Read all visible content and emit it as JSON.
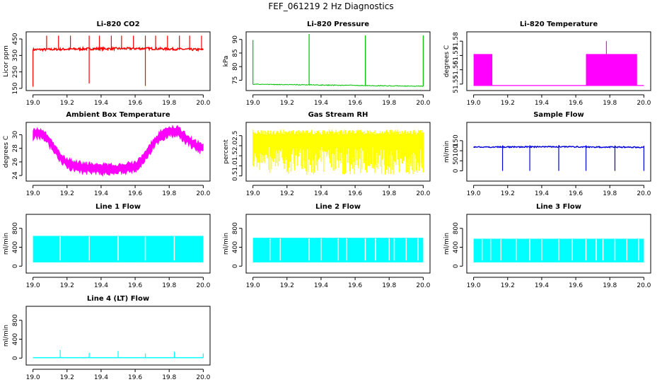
{
  "figure": {
    "title": "FEF_061219  2 Hz Diagnostics"
  },
  "chart_data": [
    {
      "id": "co2",
      "type": "line",
      "title": "Li-820 CO2",
      "ylabel": "Licor ppm",
      "color": "#ff0000",
      "xlim": [
        19.0,
        20.0
      ],
      "ylim": [
        150,
        480
      ],
      "xticks": [
        "19.0",
        "19.2",
        "19.4",
        "19.6",
        "19.8",
        "20.0"
      ],
      "yticks": [
        "150",
        "250",
        "350",
        "450"
      ],
      "shape": "co2",
      "series": [
        {
          "values": [
            [
              19.0,
              385
            ],
            [
              19.33,
              390
            ],
            [
              19.66,
              392
            ],
            [
              20.0,
              385
            ]
          ]
        }
      ],
      "spikes_up": [
        19.08,
        19.15,
        19.22,
        19.33,
        19.39,
        19.46,
        19.52,
        19.59,
        19.66,
        19.72,
        19.79,
        19.86,
        19.92,
        19.99
      ],
      "spikes_down": [
        [
          19.0,
          160
        ],
        [
          19.33,
          180
        ],
        [
          19.66,
          165
        ]
      ]
    },
    {
      "id": "pressure",
      "type": "line",
      "title": "Li-820 Pressure",
      "ylabel": "kPa",
      "color": "#00c000",
      "xlim": [
        19.0,
        20.0
      ],
      "ylim": [
        72,
        92
      ],
      "xticks": [
        "19.0",
        "19.2",
        "19.4",
        "19.6",
        "19.8",
        "20.0"
      ],
      "yticks": [
        "75",
        "80",
        "85",
        "90"
      ],
      "shape": "pressure",
      "series": [
        {
          "values": [
            [
              19.0,
              73.5
            ],
            [
              20.0,
              72.8
            ]
          ]
        }
      ],
      "spikes_up": [
        [
          19.0,
          89.8
        ],
        [
          19.33,
          92
        ],
        [
          19.66,
          91.5
        ],
        [
          20.0,
          91.5
        ]
      ]
    },
    {
      "id": "temp",
      "type": "line",
      "title": "Li-820 Temperature",
      "ylabel": "degrees C",
      "color": "#ff00ff",
      "xlim": [
        19.0,
        20.0
      ],
      "ylim": [
        51.547,
        51.585
      ],
      "xticks": [
        "19.0",
        "19.2",
        "19.4",
        "19.6",
        "19.8",
        "20.0"
      ],
      "yticks": [
        "51.55",
        "51.56",
        "51.57",
        "51.58"
      ],
      "shape": "temp",
      "levels": [
        51.549,
        51.571
      ],
      "high_segments": [
        [
          19.0,
          19.11
        ],
        [
          19.66,
          19.96
        ]
      ],
      "spike": [
        19.78,
        51.58
      ]
    },
    {
      "id": "ambient",
      "type": "line",
      "title": "Ambient Box Temperature",
      "ylabel": "degrees C",
      "color": "#ff00ff",
      "xlim": [
        19.0,
        20.0
      ],
      "ylim": [
        23.5,
        31.5
      ],
      "xticks": [
        "19.0",
        "19.2",
        "19.4",
        "19.6",
        "19.8",
        "20.0"
      ],
      "yticks": [
        "24",
        "26",
        "28",
        "30"
      ],
      "shape": "ambient",
      "series": [
        {
          "values": [
            [
              19.0,
              30.2
            ],
            [
              19.05,
              30.3
            ],
            [
              19.1,
              29.0
            ],
            [
              19.15,
              27.0
            ],
            [
              19.2,
              25.8
            ],
            [
              19.3,
              25.2
            ],
            [
              19.4,
              25.0
            ],
            [
              19.5,
              25.0
            ],
            [
              19.6,
              25.3
            ],
            [
              19.65,
              26.5
            ],
            [
              19.7,
              28.5
            ],
            [
              19.75,
              30.0
            ],
            [
              19.8,
              30.6
            ],
            [
              19.85,
              30.5
            ],
            [
              19.9,
              29.5
            ],
            [
              19.95,
              28.5
            ],
            [
              20.0,
              28.0
            ]
          ]
        }
      ]
    },
    {
      "id": "rh",
      "type": "line",
      "title": "Gas Stream RH",
      "ylabel": "percent",
      "color": "#ffff00",
      "xlim": [
        19.0,
        20.0
      ],
      "ylim": [
        0.35,
        3.05
      ],
      "xticks": [
        "19.0",
        "19.2",
        "19.4",
        "19.6",
        "19.8",
        "20.0"
      ],
      "yticks": [
        "0.5",
        "1.0",
        "1.5",
        "2.0",
        "2.5"
      ],
      "shape": "rh",
      "band": [
        0.55,
        2.8
      ]
    },
    {
      "id": "sample",
      "type": "line",
      "title": "Sample Flow",
      "ylabel": "ml/min",
      "color": "#0000dd",
      "xlim": [
        19.0,
        20.0
      ],
      "ylim": [
        -40,
        230
      ],
      "xticks": [
        "19.0",
        "19.2",
        "19.4",
        "19.6",
        "19.8",
        "20.0"
      ],
      "yticks": [
        "0",
        "50",
        "100",
        "150"
      ],
      "shape": "sample",
      "series": [
        {
          "values": [
            [
              19.0,
              118
            ],
            [
              19.5,
              120
            ],
            [
              20.0,
              117
            ]
          ]
        }
      ],
      "dips": [
        19.17,
        19.33,
        19.5,
        19.66,
        19.83,
        20.0
      ]
    },
    {
      "id": "line1",
      "type": "line",
      "title": "Line 1 Flow",
      "ylabel": "ml/min",
      "color": "#00ffff",
      "xlim": [
        19.0,
        20.0
      ],
      "ylim": [
        -100,
        1050
      ],
      "xticks": [
        "19.0",
        "19.2",
        "19.4",
        "19.6",
        "19.8",
        "20.0"
      ],
      "yticks": [
        "0",
        "400",
        "800"
      ],
      "shape": "linef",
      "band": [
        80,
        640
      ],
      "gaps": [
        19.16,
        19.33,
        19.5,
        19.66,
        19.83
      ]
    },
    {
      "id": "line2",
      "type": "line",
      "title": "Line 2 Flow",
      "ylabel": "ml/min",
      "color": "#00ffff",
      "xlim": [
        19.0,
        20.0
      ],
      "ylim": [
        -100,
        1050
      ],
      "xticks": [
        "19.0",
        "19.2",
        "19.4",
        "19.6",
        "19.8",
        "20.0"
      ],
      "yticks": [
        "0",
        "400",
        "800"
      ],
      "shape": "linef",
      "band": [
        80,
        600
      ],
      "gaps": [
        19.1,
        19.16,
        19.33,
        19.4,
        19.5,
        19.55,
        19.66,
        19.72,
        19.8,
        19.83,
        19.9,
        19.97
      ]
    },
    {
      "id": "line3",
      "type": "line",
      "title": "Line 3 Flow",
      "ylabel": "ml/min",
      "color": "#00ffff",
      "xlim": [
        19.0,
        20.0
      ],
      "ylim": [
        -100,
        1050
      ],
      "xticks": [
        "19.0",
        "19.2",
        "19.4",
        "19.6",
        "19.8",
        "20.0"
      ],
      "yticks": [
        "0",
        "400",
        "800"
      ],
      "shape": "linef",
      "band": [
        80,
        580
      ],
      "gaps": [
        19.05,
        19.1,
        19.16,
        19.25,
        19.33,
        19.4,
        19.5,
        19.58,
        19.66,
        19.72,
        19.76,
        19.83,
        19.9,
        19.97
      ]
    },
    {
      "id": "line4",
      "type": "line",
      "title": "Line 4 (LT) Flow",
      "ylabel": "ml/min",
      "color": "#00ffff",
      "xlim": [
        19.0,
        20.0
      ],
      "ylim": [
        -100,
        1050
      ],
      "xticks": [
        "19.0",
        "19.2",
        "19.4",
        "19.6",
        "19.8",
        "20.0"
      ],
      "yticks": [
        "0",
        "400",
        "800"
      ],
      "shape": "line4",
      "series": [
        {
          "values": [
            [
              19.0,
              10
            ],
            [
              20.0,
              10
            ]
          ]
        }
      ],
      "spikes": [
        [
          19.16,
          170
        ],
        [
          19.33,
          110
        ],
        [
          19.5,
          150
        ],
        [
          19.66,
          100
        ],
        [
          19.83,
          140
        ],
        [
          20.0,
          100
        ]
      ]
    }
  ]
}
